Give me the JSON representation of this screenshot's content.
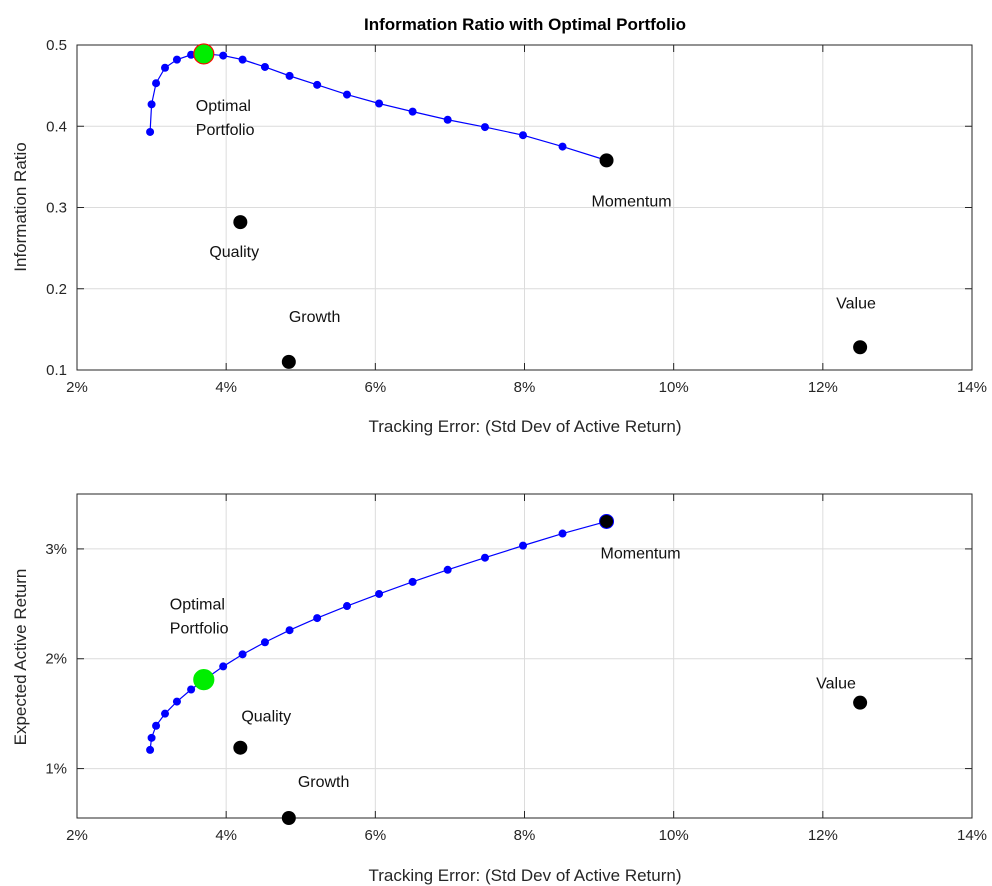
{
  "chart_data": [
    {
      "type": "line",
      "title": "Information Ratio with Optimal Portfolio",
      "xlabel": "Tracking Error: (Std Dev of Active Return)",
      "ylabel": "Information Ratio",
      "xlim": [
        0.02,
        0.14
      ],
      "ylim": [
        0.1,
        0.5
      ],
      "x_ticks": [
        "2%",
        "4%",
        "6%",
        "8%",
        "10%",
        "12%",
        "14%"
      ],
      "y_ticks": [
        "0.1",
        "0.2",
        "0.3",
        "0.4",
        "0.5"
      ],
      "grid": true,
      "frontier": {
        "color": "#0000ff",
        "x": [
          0.0298,
          0.03,
          0.0306,
          0.0318,
          0.0334,
          0.0353,
          0.0373,
          0.0396,
          0.0422,
          0.0452,
          0.0485,
          0.0522,
          0.0562,
          0.0605,
          0.065,
          0.0697,
          0.0747,
          0.0798,
          0.0851,
          0.091
        ],
        "y": [
          0.393,
          0.427,
          0.453,
          0.472,
          0.482,
          0.488,
          0.489,
          0.487,
          0.482,
          0.473,
          0.462,
          0.451,
          0.439,
          0.428,
          0.418,
          0.408,
          0.399,
          0.389,
          0.375,
          0.358
        ]
      },
      "factors": [
        {
          "name": "Momentum",
          "x": 0.091,
          "y": 0.358
        },
        {
          "name": "Quality",
          "x": 0.0419,
          "y": 0.282
        },
        {
          "name": "Growth",
          "x": 0.0484,
          "y": 0.11
        },
        {
          "name": "Value",
          "x": 0.125,
          "y": 0.128
        }
      ],
      "optimal": {
        "label_line1": "Optimal",
        "label_line2": "Portfolio",
        "x": 0.037,
        "y": 0.489,
        "fill": "#00ee00",
        "edge": "#ff0000"
      }
    },
    {
      "type": "line",
      "title": "",
      "xlabel": "Tracking Error: (Std Dev of Active Return)",
      "ylabel": "Expected Active Return",
      "xlim": [
        0.02,
        0.14
      ],
      "ylim": [
        0.0055,
        0.035
      ],
      "x_ticks": [
        "2%",
        "4%",
        "6%",
        "8%",
        "10%",
        "12%",
        "14%"
      ],
      "y_tick_values": [
        0.01,
        0.02,
        0.03
      ],
      "y_ticks": [
        "1%",
        "2%",
        "3%"
      ],
      "grid": true,
      "frontier": {
        "color": "#0000ff",
        "x": [
          0.0298,
          0.03,
          0.0306,
          0.0318,
          0.0334,
          0.0353,
          0.0373,
          0.0396,
          0.0422,
          0.0452,
          0.0485,
          0.0522,
          0.0562,
          0.0605,
          0.065,
          0.0697,
          0.0747,
          0.0798,
          0.0851,
          0.091
        ],
        "y": [
          0.0117,
          0.0128,
          0.0139,
          0.015,
          0.0161,
          0.0172,
          0.0182,
          0.0193,
          0.0204,
          0.0215,
          0.0226,
          0.0237,
          0.0248,
          0.0259,
          0.027,
          0.0281,
          0.0292,
          0.0303,
          0.0314,
          0.0325
        ]
      },
      "factors": [
        {
          "name": "Momentum",
          "x": 0.091,
          "y": 0.0325
        },
        {
          "name": "Quality",
          "x": 0.0419,
          "y": 0.0119
        },
        {
          "name": "Growth",
          "x": 0.0484,
          "y": 0.0055
        },
        {
          "name": "Value",
          "x": 0.125,
          "y": 0.016
        }
      ],
      "optimal": {
        "label_line1": "Optimal",
        "label_line2": "Portfolio",
        "x": 0.037,
        "y": 0.0181,
        "fill": "#00ee00",
        "edge": "#00ee00"
      }
    }
  ]
}
